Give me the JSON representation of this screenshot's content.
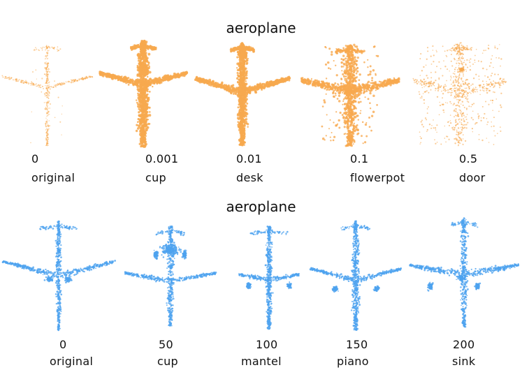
{
  "colors": {
    "top": "#f7a94f",
    "bottom": "#4da3ef"
  },
  "top_panel": {
    "title": "aeroplane",
    "items": [
      {
        "value": "0",
        "label": "original"
      },
      {
        "value": "0.001",
        "label": "cup"
      },
      {
        "value": "0.01",
        "label": "desk"
      },
      {
        "value": "0.1",
        "label": "flowerpot"
      },
      {
        "value": "0.5",
        "label": "door"
      }
    ]
  },
  "bottom_panel": {
    "title": "aeroplane",
    "items": [
      {
        "value": "0",
        "label": "original"
      },
      {
        "value": "50",
        "label": "cup"
      },
      {
        "value": "100",
        "label": "mantel"
      },
      {
        "value": "150",
        "label": "piano"
      },
      {
        "value": "200",
        "label": "sink"
      }
    ]
  }
}
